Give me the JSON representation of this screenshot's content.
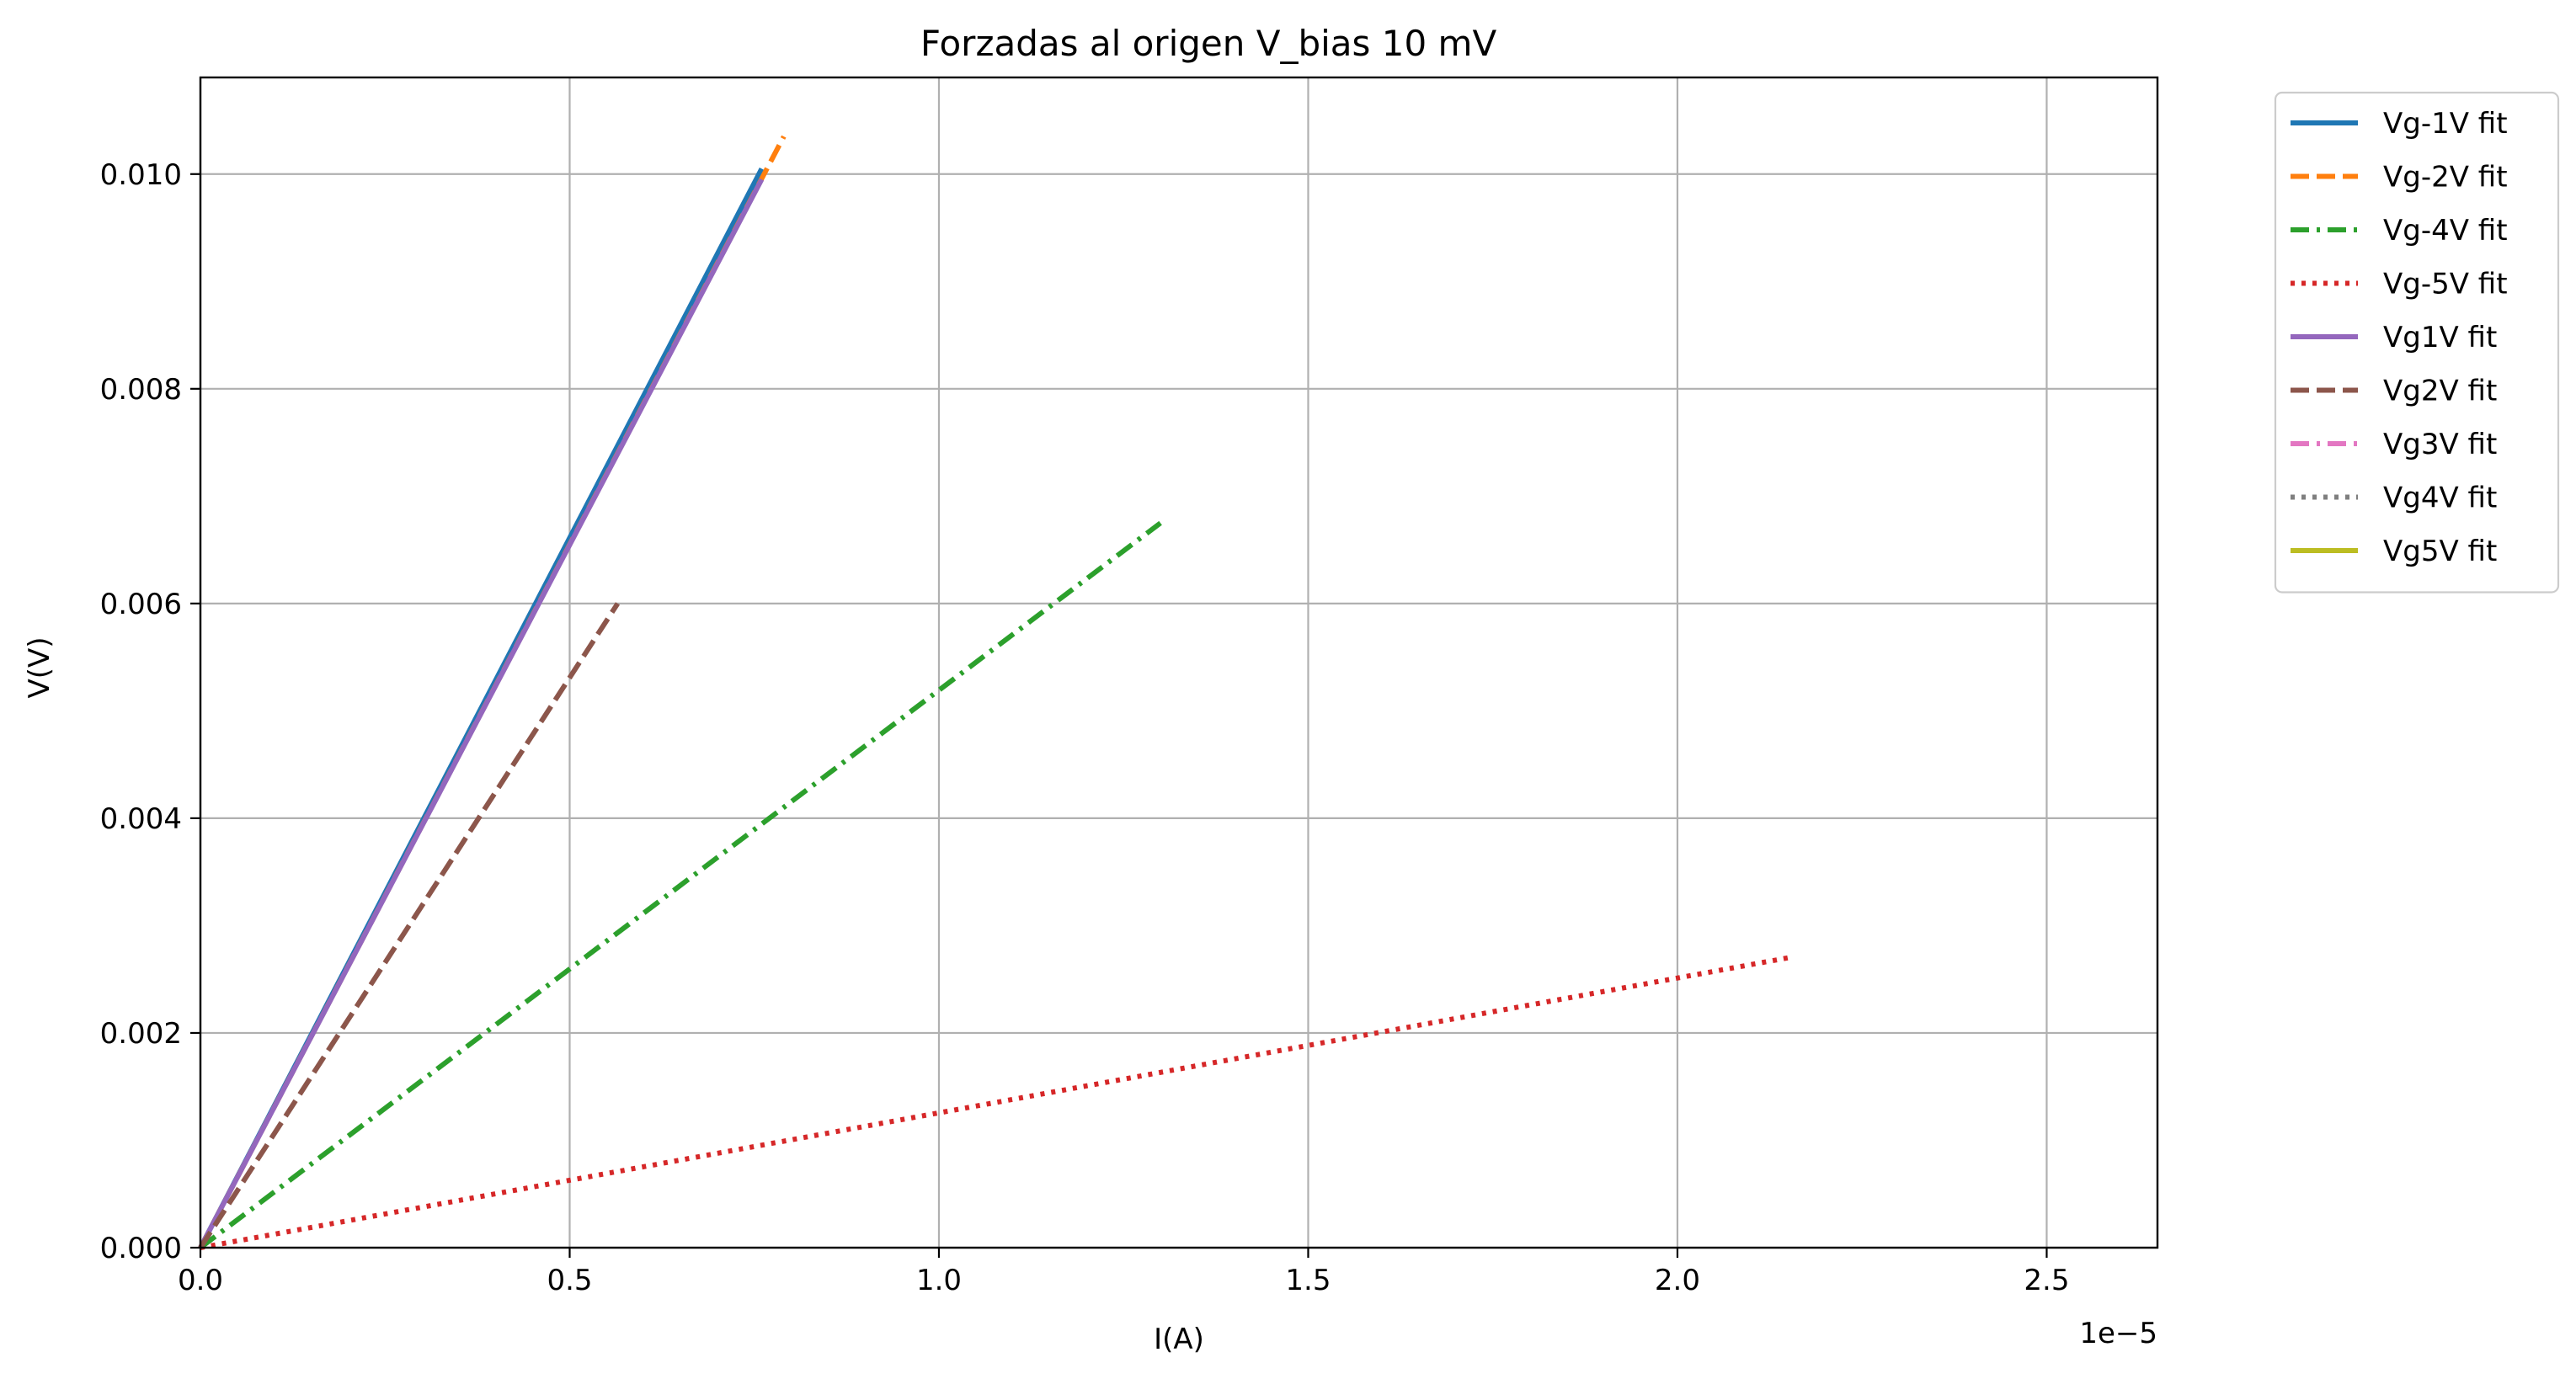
{
  "chart_data": {
    "type": "line",
    "title": "Forzadas al origen V_bias 10 mV",
    "xlabel": "I(A)",
    "ylabel": "V(V)",
    "x_offset_label": "1e−5",
    "x_scale": 1e-05,
    "xlim": [
      0,
      2.65e-05
    ],
    "ylim": [
      0,
      0.0109
    ],
    "x_ticks": [
      0,
      5e-06,
      1e-05,
      1.5e-05,
      2e-05,
      2.5e-05
    ],
    "x_tick_labels": [
      "0.0",
      "0.5",
      "1.0",
      "1.5",
      "2.0",
      "2.5"
    ],
    "y_ticks": [
      0,
      0.002,
      0.004,
      0.006,
      0.008,
      0.01
    ],
    "y_tick_labels": [
      "0.000",
      "0.002",
      "0.004",
      "0.006",
      "0.008",
      "0.010"
    ],
    "grid": true,
    "legend_position": "outside-top-right",
    "series": [
      {
        "name": "Vg-1V fit",
        "color": "#1f77b4",
        "dash": "solid",
        "x": [
          0,
          7.6e-06
        ],
        "y": [
          0,
          0.01005
        ]
      },
      {
        "name": "Vg-2V fit",
        "color": "#ff7f0e",
        "dash": "dashed",
        "x": [
          0,
          7.9e-06
        ],
        "y": [
          0,
          0.01035
        ]
      },
      {
        "name": "Vg-4V fit",
        "color": "#2ca02c",
        "dash": "dashdot",
        "x": [
          0,
          1.3e-05
        ],
        "y": [
          0,
          0.00675
        ]
      },
      {
        "name": "Vg-5V fit",
        "color": "#d62728",
        "dash": "dotted",
        "x": [
          0,
          2.15e-05
        ],
        "y": [
          0,
          0.0027
        ]
      },
      {
        "name": "Vg1V fit",
        "color": "#9467bd",
        "dash": "solid",
        "x": [
          0,
          7.6e-06
        ],
        "y": [
          0,
          0.00995
        ]
      },
      {
        "name": "Vg2V fit",
        "color": "#8c564b",
        "dash": "dashed",
        "x": [
          0,
          5.65e-06
        ],
        "y": [
          0,
          0.006
        ]
      },
      {
        "name": "Vg3V fit",
        "color": "#e377c2",
        "dash": "dashdot",
        "x": [
          0,
          0
        ],
        "y": [
          0,
          0
        ]
      },
      {
        "name": "Vg4V fit",
        "color": "#7f7f7f",
        "dash": "dotted",
        "x": [
          0,
          0
        ],
        "y": [
          0,
          0
        ]
      },
      {
        "name": "Vg5V fit",
        "color": "#bcbd22",
        "dash": "solid",
        "x": [
          0,
          0
        ],
        "y": [
          0,
          0
        ]
      }
    ]
  }
}
